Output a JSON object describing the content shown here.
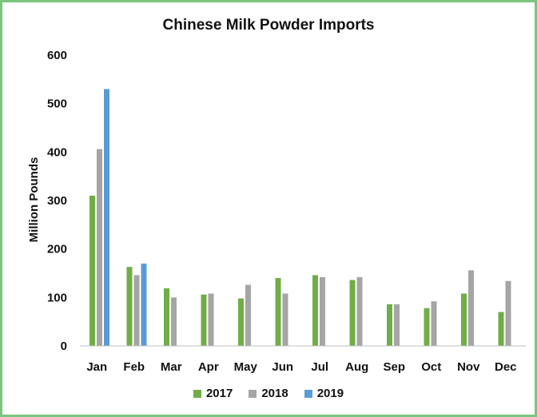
{
  "chart_data": {
    "type": "bar",
    "title": "Chinese Milk Powder Imports",
    "ylabel": "Million Pounds",
    "xlabel": "",
    "ylim": [
      0,
      600
    ],
    "yticks": [
      0,
      100,
      200,
      300,
      400,
      500,
      600
    ],
    "categories": [
      "Jan",
      "Feb",
      "Mar",
      "Apr",
      "May",
      "Jun",
      "Jul",
      "Aug",
      "Sep",
      "Oct",
      "Nov",
      "Dec"
    ],
    "series": [
      {
        "name": "2017",
        "color": "#70ad47",
        "values": [
          310,
          163,
          119,
          106,
          98,
          140,
          146,
          136,
          86,
          78,
          108,
          70
        ]
      },
      {
        "name": "2018",
        "color": "#a5a5a5",
        "values": [
          406,
          146,
          100,
          108,
          126,
          108,
          142,
          142,
          86,
          92,
          156,
          134
        ]
      },
      {
        "name": "2019",
        "color": "#5b9bd5",
        "values": [
          530,
          170,
          null,
          null,
          null,
          null,
          null,
          null,
          null,
          null,
          null,
          null
        ]
      }
    ],
    "grid": false,
    "legend_position": "bottom"
  }
}
